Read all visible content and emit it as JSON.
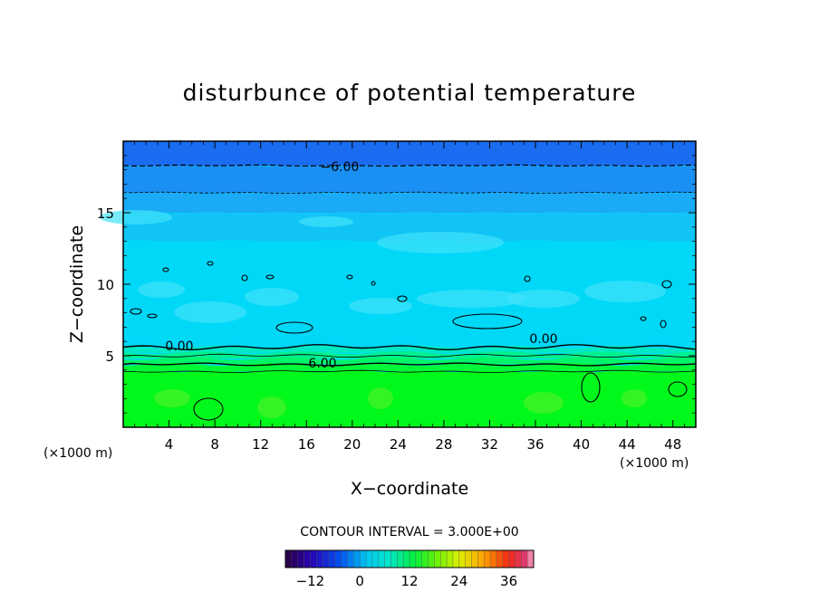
{
  "chart_data": {
    "type": "contour",
    "title": "disturbunce of potential temperature",
    "xlabel": "X−coordinate",
    "ylabel": "Z−coordinate",
    "x_unit_left": "(×1000 m)",
    "x_unit_right": "(×1000 m)",
    "xlim": [
      0,
      50
    ],
    "ylim": [
      0,
      20
    ],
    "xticks": [
      "4",
      "8",
      "12",
      "16",
      "20",
      "24",
      "28",
      "32",
      "36",
      "40",
      "44",
      "48"
    ],
    "yticks": [
      "5",
      "10",
      "15"
    ],
    "contour_interval_text": "CONTOUR INTERVAL = 3.000E+00",
    "contour_labels": [
      "−6.00",
      "0.00",
      "0.00",
      "6.00"
    ],
    "colorbar": {
      "range": [
        -18,
        42
      ],
      "tick_labels": [
        "−12",
        "0",
        "12",
        "24",
        "36"
      ]
    },
    "layers": [
      {
        "z_top": 20.0,
        "z_bottom": 18.3,
        "color": "#1a6cf0"
      },
      {
        "z_top": 18.3,
        "z_bottom": 16.4,
        "color": "#1a90f4"
      },
      {
        "z_top": 16.4,
        "z_bottom": 15.0,
        "color": "#1aaaf6"
      },
      {
        "z_top": 15.0,
        "z_bottom": 13.0,
        "color": "#10c4f6"
      },
      {
        "z_top": 13.0,
        "z_bottom": 5.6,
        "color": "#00d8f8"
      },
      {
        "z_top": 5.6,
        "z_bottom": 5.2,
        "color": "#00e8c4"
      },
      {
        "z_top": 5.2,
        "z_bottom": 4.8,
        "color": "#00f090"
      },
      {
        "z_top": 4.8,
        "z_bottom": 4.4,
        "color": "#00f46a"
      },
      {
        "z_top": 4.4,
        "z_bottom": 3.9,
        "color": "#00f838"
      },
      {
        "z_top": 3.9,
        "z_bottom": 0.0,
        "color": "#00f81a"
      }
    ]
  }
}
